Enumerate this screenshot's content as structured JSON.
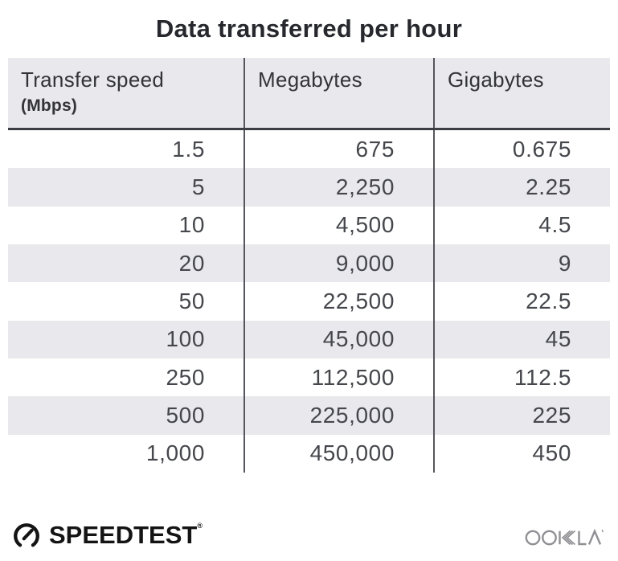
{
  "title": "Data transferred per hour",
  "table": {
    "columns": [
      {
        "label": "Transfer speed",
        "sublabel": "(Mbps)"
      },
      {
        "label": "Megabytes",
        "sublabel": ""
      },
      {
        "label": "Gigabytes",
        "sublabel": ""
      }
    ],
    "rows": [
      [
        "1.5",
        "675",
        "0.675"
      ],
      [
        "5",
        "2,250",
        "2.25"
      ],
      [
        "10",
        "4,500",
        "4.5"
      ],
      [
        "20",
        "9,000",
        "9"
      ],
      [
        "50",
        "22,500",
        "22.5"
      ],
      [
        "100",
        "45,000",
        "45"
      ],
      [
        "250",
        "112,500",
        "112.5"
      ],
      [
        "500",
        "225,000",
        "225"
      ],
      [
        "1,000",
        "450,000",
        "450"
      ]
    ]
  },
  "footer": {
    "speedtest_label": "SPEEDTEST",
    "speedtest_reg_mark": "®",
    "ookla_label": "OOKLA"
  },
  "colors": {
    "header_bg": "#e9e8ec",
    "stripe_bg": "#e9e8ec",
    "divider": "#54565b",
    "header_border": "#3c3e43",
    "title_text": "#26282d",
    "cell_text": "#45474c",
    "ookla_gray": "#909094",
    "speedtest_black": "#141414"
  },
  "chart_data": {
    "type": "table",
    "title": "Data transferred per hour",
    "columns": [
      "Transfer speed (Mbps)",
      "Megabytes",
      "Gigabytes"
    ],
    "rows": [
      [
        1.5,
        675,
        0.675
      ],
      [
        5,
        2250,
        2.25
      ],
      [
        10,
        4500,
        4.5
      ],
      [
        20,
        9000,
        9
      ],
      [
        50,
        22500,
        22.5
      ],
      [
        100,
        45000,
        45
      ],
      [
        250,
        112500,
        112.5
      ],
      [
        500,
        225000,
        225
      ],
      [
        1000,
        450000,
        450
      ]
    ]
  }
}
